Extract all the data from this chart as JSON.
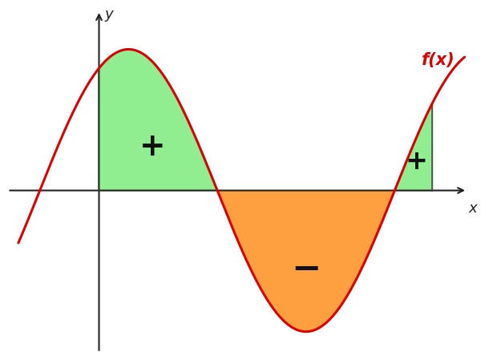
{
  "background_color": "#ffffff",
  "curve_color": "#dd0000",
  "green_color": "#90ee90",
  "orange_color": "#ffa040",
  "axis_color": "#222222",
  "label_color": "#dd0000",
  "sign_color": "#111111",
  "fx_label": "f(x)",
  "x_label": "x",
  "y_label": "y",
  "plus_sign": "+",
  "minus_sign": "−",
  "xlim": [
    -1.8,
    7.0
  ],
  "ylim": [
    -1.6,
    1.8
  ],
  "x_zero1": 2.2,
  "x_zero2": 5.5,
  "x_left_bound": 0.0,
  "x_right_bound": 6.2,
  "amplitude": 1.35,
  "B": 1.2566370614359172,
  "C": 2.2,
  "curve_start": -1.5,
  "curve_end": 6.8
}
